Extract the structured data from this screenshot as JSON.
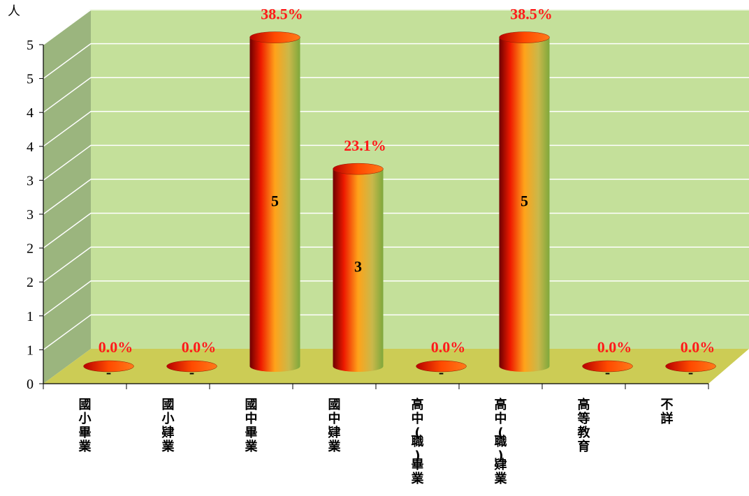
{
  "chart_data": {
    "type": "bar",
    "ylabel": "人",
    "y_tick_labels": [
      "0",
      "1",
      "1",
      "2",
      "2",
      "3",
      "3",
      "4",
      "4",
      "5",
      "5"
    ],
    "ylim": [
      0,
      5
    ],
    "grid": true,
    "categories": [
      "國小畢業",
      "國小肄業",
      "國中畢業",
      "國中肄業",
      "高中(職)畢業",
      "高中(職)肄業",
      "高等教育",
      "不詳"
    ],
    "values": [
      0,
      0,
      5,
      3,
      0,
      5,
      0,
      0
    ],
    "value_labels": [
      "-",
      "-",
      "5",
      "3",
      "-",
      "5",
      "-",
      "-"
    ],
    "percent_labels": [
      "0.0%",
      "0.0%",
      "38.5%",
      "23.1%",
      "0.0%",
      "38.5%",
      "0.0%",
      "0.0%"
    ],
    "colors": {
      "back_wall": "#c4e09a",
      "side_wall": "#9bb57e",
      "floor": "#cccc55",
      "bar_dark": "#6e0000",
      "bar_red": "#ee1a00",
      "bar_orange": "#ffa31a",
      "bar_green": "#7ea83c",
      "percent_text": "#ff1a1a"
    }
  }
}
